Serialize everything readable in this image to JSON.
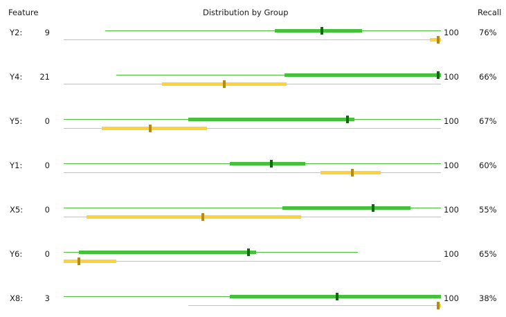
{
  "header": {
    "feature": "Feature",
    "distribution": "Distribution by Group",
    "recall": "Recall"
  },
  "colors": {
    "green_line": "#4cbf3a",
    "green_bar": "#44c23a",
    "green_tick": "#0b6e0b",
    "yellow_line": "#f2c43a",
    "yellow_bar": "#fcd23c",
    "yellow_tick": "#b58a12"
  },
  "rows": [
    {
      "feature": "Y2:",
      "count": "9",
      "max": "100",
      "recall": "76%",
      "green": {
        "line": [
          11,
          100
        ],
        "bar": [
          56,
          79
        ],
        "tick": 68.5
      },
      "yellow": {
        "line": [
          0,
          100
        ],
        "bar": [
          97,
          100
        ],
        "tick": 99.2
      }
    },
    {
      "feature": "Y4:",
      "count": "21",
      "max": "100",
      "recall": "66%",
      "green": {
        "line": [
          14,
          100
        ],
        "bar": [
          58.5,
          100
        ],
        "tick": 99.5
      },
      "yellow": {
        "line": [
          0,
          100
        ],
        "bar": [
          26,
          59
        ],
        "tick": 42.5
      }
    },
    {
      "feature": "Y5:",
      "count": "0",
      "max": "100",
      "recall": "67%",
      "green": {
        "line": [
          0,
          100
        ],
        "bar": [
          33,
          77
        ],
        "tick": 75.2
      },
      "yellow": {
        "line": [
          0,
          100
        ],
        "bar": [
          10,
          38
        ],
        "tick": 23
      }
    },
    {
      "feature": "Y1:",
      "count": "0",
      "max": "100",
      "recall": "60%",
      "green": {
        "line": [
          0,
          100
        ],
        "bar": [
          44,
          64
        ],
        "tick": 55
      },
      "yellow": {
        "line": [
          0,
          100
        ],
        "bar": [
          68,
          84
        ],
        "tick": 76.5
      }
    },
    {
      "feature": "X5:",
      "count": "0",
      "max": "100",
      "recall": "55%",
      "green": {
        "line": [
          0,
          100
        ],
        "bar": [
          58,
          92
        ],
        "tick": 82
      },
      "yellow": {
        "line": [
          0,
          100
        ],
        "bar": [
          6,
          63
        ],
        "tick": 36.8
      }
    },
    {
      "feature": "Y6:",
      "count": "0",
      "max": "100",
      "recall": "65%",
      "green": {
        "line": [
          0,
          78
        ],
        "bar": [
          4,
          51
        ],
        "tick": 49
      },
      "yellow": {
        "line": [
          0,
          100
        ],
        "bar": [
          0,
          14
        ],
        "tick": 4
      }
    },
    {
      "feature": "X8:",
      "count": "3",
      "max": "100",
      "recall": "38%",
      "green": {
        "line": [
          0,
          100
        ],
        "bar": [
          44,
          100
        ],
        "tick": 72.5
      },
      "yellow": {
        "line": [
          33,
          100
        ],
        "bar": [
          99,
          100
        ],
        "tick": 99.5
      }
    }
  ]
}
